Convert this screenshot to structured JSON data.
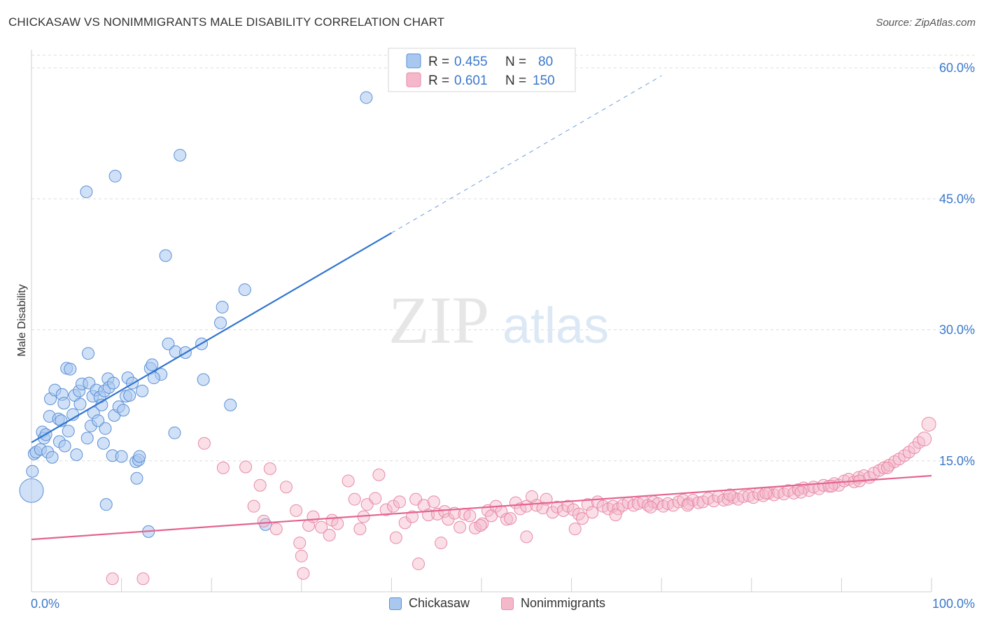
{
  "title": "CHICKASAW VS NONIMMIGRANTS MALE DISABILITY CORRELATION CHART",
  "source": "Source: ZipAtlas.com",
  "watermark": {
    "zip": "ZIP",
    "atlas": "atlas"
  },
  "colors": {
    "blue_fill": "#a9c8f0",
    "blue_stroke": "#5b8fd6",
    "blue_line": "#2f74d0",
    "pink_fill": "#f5b8ca",
    "pink_stroke": "#e88aa8",
    "pink_line": "#e4648f",
    "axis_text_blue": "#3a78cc",
    "grid": "#dddddd"
  },
  "chart_data": {
    "type": "scatter",
    "title": "CHICKASAW VS NONIMMIGRANTS MALE DISABILITY CORRELATION CHART",
    "xlabel": "",
    "ylabel": "Male Disability",
    "xlim": [
      0,
      100
    ],
    "ylim": [
      0,
      60
    ],
    "x_tick_labels": {
      "min": "0.0%",
      "max": "100.0%"
    },
    "y_ticks": [
      {
        "value": 15,
        "label": "15.0%"
      },
      {
        "value": 30,
        "label": "30.0%"
      },
      {
        "value": 45,
        "label": "45.0%"
      },
      {
        "value": 60,
        "label": "60.0%"
      }
    ],
    "grid": true,
    "legend_top": [
      {
        "r_label": "R =",
        "r_value": "0.455",
        "n_label": "N =",
        "n_value": "80"
      },
      {
        "r_label": "R =",
        "r_value": "0.601",
        "n_label": "N =",
        "n_value": "150"
      }
    ],
    "series": [
      {
        "name": "Chickasaw",
        "color": "#a9c8f0",
        "trendline": {
          "x0": 0,
          "y0": 17.1,
          "x1": 40,
          "y1": 41.1,
          "dash_to_x": 70,
          "dash_to_y": 59.1
        },
        "points": [
          [
            0.0,
            11.6,
            1
          ],
          [
            0.1,
            13.8,
            0
          ],
          [
            0.3,
            15.8,
            0
          ],
          [
            0.5,
            16.0,
            0
          ],
          [
            1.0,
            16.3,
            0
          ],
          [
            1.2,
            18.3,
            0
          ],
          [
            1.4,
            17.6,
            0
          ],
          [
            1.6,
            18.0,
            0
          ],
          [
            1.8,
            16.0,
            0
          ],
          [
            2.0,
            20.1,
            0
          ],
          [
            2.1,
            22.1,
            0
          ],
          [
            2.3,
            15.4,
            0
          ],
          [
            2.6,
            23.1,
            0
          ],
          [
            3.0,
            19.8,
            0
          ],
          [
            3.1,
            17.2,
            0
          ],
          [
            3.3,
            19.6,
            0
          ],
          [
            3.4,
            22.6,
            0
          ],
          [
            3.6,
            21.6,
            0
          ],
          [
            3.7,
            16.7,
            0
          ],
          [
            3.9,
            25.6,
            0
          ],
          [
            4.1,
            18.4,
            0
          ],
          [
            4.3,
            25.5,
            0
          ],
          [
            4.6,
            20.3,
            0
          ],
          [
            4.8,
            22.5,
            0
          ],
          [
            5.0,
            15.7,
            0
          ],
          [
            5.3,
            23.0,
            0
          ],
          [
            5.4,
            21.5,
            0
          ],
          [
            5.6,
            23.8,
            0
          ],
          [
            6.1,
            45.8,
            0
          ],
          [
            6.2,
            17.6,
            0
          ],
          [
            6.3,
            27.3,
            0
          ],
          [
            6.4,
            23.9,
            0
          ],
          [
            6.6,
            19.0,
            0
          ],
          [
            6.8,
            22.4,
            0
          ],
          [
            6.9,
            20.5,
            0
          ],
          [
            7.2,
            23.1,
            0
          ],
          [
            7.4,
            19.6,
            0
          ],
          [
            7.6,
            22.3,
            0
          ],
          [
            7.8,
            21.4,
            0
          ],
          [
            8.1,
            23.0,
            0
          ],
          [
            8.2,
            18.7,
            0
          ],
          [
            8.3,
            10.0,
            0
          ],
          [
            8.5,
            24.4,
            0
          ],
          [
            8.6,
            23.4,
            0
          ],
          [
            9.0,
            15.6,
            0
          ],
          [
            9.1,
            23.9,
            0
          ],
          [
            9.2,
            20.2,
            0
          ],
          [
            9.3,
            47.6,
            0
          ],
          [
            9.7,
            21.2,
            0
          ],
          [
            10.0,
            15.5,
            0
          ],
          [
            10.2,
            20.8,
            0
          ],
          [
            10.5,
            22.4,
            0
          ],
          [
            10.7,
            24.5,
            0
          ],
          [
            10.9,
            22.5,
            0
          ],
          [
            11.2,
            23.9,
            0
          ],
          [
            11.6,
            14.9,
            0
          ],
          [
            11.7,
            13.0,
            0
          ],
          [
            11.9,
            15.1,
            0
          ],
          [
            12.0,
            15.5,
            0
          ],
          [
            12.3,
            23.0,
            0
          ],
          [
            13.0,
            6.9,
            0
          ],
          [
            13.2,
            25.6,
            0
          ],
          [
            13.4,
            26.0,
            0
          ],
          [
            14.4,
            24.9,
            0
          ],
          [
            14.9,
            38.5,
            0
          ],
          [
            15.2,
            28.4,
            0
          ],
          [
            15.9,
            18.2,
            0
          ],
          [
            16.0,
            27.5,
            0
          ],
          [
            16.5,
            50.0,
            0
          ],
          [
            17.1,
            27.4,
            0
          ],
          [
            18.9,
            28.4,
            0
          ],
          [
            19.1,
            24.3,
            0
          ],
          [
            21.0,
            30.8,
            0
          ],
          [
            21.2,
            32.6,
            0
          ],
          [
            22.1,
            21.4,
            0
          ],
          [
            23.7,
            34.6,
            0
          ],
          [
            26.0,
            7.7,
            0
          ],
          [
            37.2,
            56.6,
            0
          ],
          [
            8.0,
            17.0,
            0
          ],
          [
            13.6,
            24.5,
            0
          ]
        ]
      },
      {
        "name": "Nonimmigrants",
        "color": "#f5b8ca",
        "trendline": {
          "x0": 0,
          "y0": 6.0,
          "x1": 100,
          "y1": 13.3
        },
        "points": [
          [
            9.0,
            1.5
          ],
          [
            12.4,
            1.5
          ],
          [
            19.2,
            17.0
          ],
          [
            21.3,
            14.2
          ],
          [
            23.8,
            14.3
          ],
          [
            24.7,
            9.8
          ],
          [
            25.4,
            12.2
          ],
          [
            25.8,
            8.1
          ],
          [
            26.5,
            14.1
          ],
          [
            27.2,
            7.2
          ],
          [
            28.3,
            12.0
          ],
          [
            29.4,
            9.3
          ],
          [
            29.8,
            5.6
          ],
          [
            30.2,
            2.1
          ],
          [
            30.8,
            7.6
          ],
          [
            31.3,
            8.6
          ],
          [
            32.2,
            7.4
          ],
          [
            33.4,
            8.2
          ],
          [
            34.0,
            7.8
          ],
          [
            35.2,
            12.7
          ],
          [
            35.9,
            10.6
          ],
          [
            36.5,
            7.2
          ],
          [
            37.3,
            10.0
          ],
          [
            38.2,
            10.7
          ],
          [
            38.6,
            13.4
          ],
          [
            39.4,
            9.4
          ],
          [
            40.2,
            9.8
          ],
          [
            40.9,
            10.3
          ],
          [
            41.5,
            7.9
          ],
          [
            42.3,
            8.6
          ],
          [
            42.7,
            10.6
          ],
          [
            43.0,
            3.2
          ],
          [
            43.6,
            9.9
          ],
          [
            44.1,
            8.8
          ],
          [
            44.7,
            10.3
          ],
          [
            45.1,
            8.9
          ],
          [
            45.9,
            9.2
          ],
          [
            46.3,
            8.3
          ],
          [
            47.0,
            9.0
          ],
          [
            47.6,
            7.4
          ],
          [
            48.1,
            8.9
          ],
          [
            48.7,
            8.7
          ],
          [
            49.3,
            7.3
          ],
          [
            50.1,
            7.8
          ],
          [
            50.7,
            9.3
          ],
          [
            51.1,
            8.7
          ],
          [
            51.6,
            9.8
          ],
          [
            52.2,
            9.2
          ],
          [
            52.8,
            8.3
          ],
          [
            53.2,
            8.4
          ],
          [
            53.8,
            10.2
          ],
          [
            54.3,
            9.5
          ],
          [
            55.0,
            9.8
          ],
          [
            55.6,
            10.9
          ],
          [
            56.1,
            9.9
          ],
          [
            56.8,
            9.6
          ],
          [
            57.2,
            10.6
          ],
          [
            57.9,
            9.1
          ],
          [
            58.4,
            9.7
          ],
          [
            59.1,
            9.3
          ],
          [
            59.6,
            9.8
          ],
          [
            60.2,
            9.4
          ],
          [
            60.8,
            8.9
          ],
          [
            61.2,
            8.4
          ],
          [
            61.8,
            10.0
          ],
          [
            62.3,
            9.1
          ],
          [
            62.9,
            10.3
          ],
          [
            63.5,
            9.8
          ],
          [
            64.1,
            9.5
          ],
          [
            64.6,
            9.8
          ],
          [
            65.2,
            9.5
          ],
          [
            65.7,
            9.9
          ],
          [
            66.3,
            10.2
          ],
          [
            66.9,
            9.9
          ],
          [
            67.4,
            10.1
          ],
          [
            68.0,
            10.3
          ],
          [
            68.5,
            9.9
          ],
          [
            69.1,
            10.3
          ],
          [
            69.6,
            10.1
          ],
          [
            70.2,
            9.8
          ],
          [
            70.7,
            10.1
          ],
          [
            71.3,
            9.9
          ],
          [
            71.9,
            10.3
          ],
          [
            72.4,
            10.5
          ],
          [
            73.0,
            10.1
          ],
          [
            73.5,
            10.5
          ],
          [
            74.1,
            10.2
          ],
          [
            74.6,
            10.3
          ],
          [
            75.2,
            10.7
          ],
          [
            75.8,
            10.4
          ],
          [
            76.3,
            10.9
          ],
          [
            76.9,
            10.5
          ],
          [
            77.4,
            10.6
          ],
          [
            78.0,
            10.8
          ],
          [
            78.5,
            10.6
          ],
          [
            79.1,
            10.9
          ],
          [
            79.7,
            11.0
          ],
          [
            80.2,
            10.8
          ],
          [
            80.8,
            11.2
          ],
          [
            81.3,
            11.0
          ],
          [
            81.9,
            11.3
          ],
          [
            82.5,
            11.1
          ],
          [
            83.0,
            11.4
          ],
          [
            83.6,
            11.2
          ],
          [
            84.1,
            11.6
          ],
          [
            84.7,
            11.3
          ],
          [
            85.2,
            11.7
          ],
          [
            85.8,
            11.9
          ],
          [
            86.4,
            11.6
          ],
          [
            86.9,
            12.0
          ],
          [
            87.5,
            11.8
          ],
          [
            88.0,
            12.2
          ],
          [
            88.6,
            12.1
          ],
          [
            89.2,
            12.4
          ],
          [
            89.7,
            12.2
          ],
          [
            90.3,
            12.7
          ],
          [
            90.8,
            12.9
          ],
          [
            91.4,
            12.6
          ],
          [
            91.9,
            13.1
          ],
          [
            92.5,
            13.3
          ],
          [
            93.1,
            13.1
          ],
          [
            93.6,
            13.6
          ],
          [
            94.2,
            13.9
          ],
          [
            94.7,
            14.2
          ],
          [
            95.3,
            14.5
          ],
          [
            95.9,
            14.9
          ],
          [
            96.4,
            15.2
          ],
          [
            97.0,
            15.6
          ],
          [
            97.5,
            16.0
          ],
          [
            98.1,
            16.5
          ],
          [
            98.6,
            17.1
          ],
          [
            99.2,
            17.5
          ],
          [
            99.7,
            19.2
          ],
          [
            30.0,
            4.1
          ],
          [
            33.1,
            6.5
          ],
          [
            36.9,
            8.6
          ],
          [
            40.5,
            6.2
          ],
          [
            45.5,
            5.6
          ],
          [
            49.9,
            7.6
          ],
          [
            55.0,
            6.3
          ],
          [
            60.4,
            7.2
          ],
          [
            64.9,
            8.8
          ],
          [
            68.8,
            9.7
          ],
          [
            72.9,
            9.9
          ],
          [
            77.6,
            11.1
          ],
          [
            81.6,
            11.3
          ],
          [
            85.5,
            11.4
          ],
          [
            88.9,
            12.1
          ],
          [
            92.0,
            12.7
          ],
          [
            95.1,
            14.2
          ]
        ]
      }
    ]
  },
  "legend_bottom": [
    "Chickasaw",
    "Nonimmigrants"
  ]
}
